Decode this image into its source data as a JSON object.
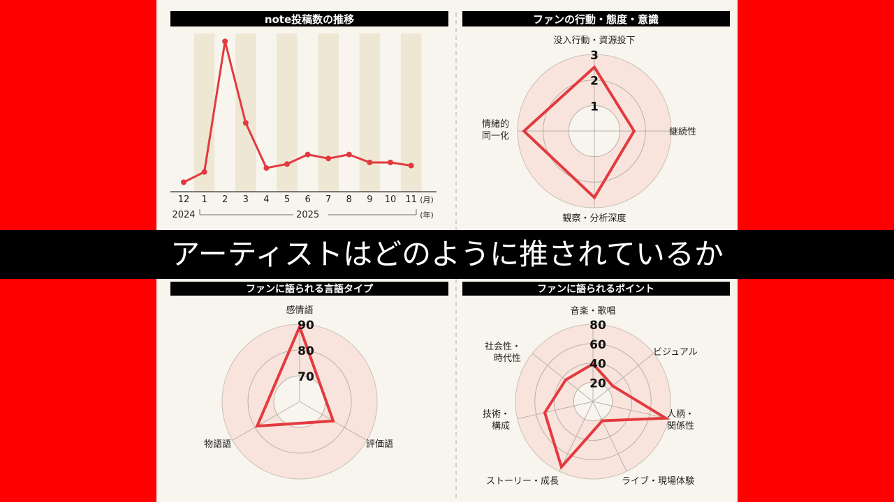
{
  "banner": {
    "title": "アーティストはどのように推されているか"
  },
  "colors": {
    "accent": "#e23a3f",
    "background": "#ff0000",
    "panel": "#f8f5ee",
    "ring": "#f8e4dc",
    "band": "#ede7d4",
    "header": "#000000"
  },
  "chart_data": [
    {
      "type": "line",
      "title": "note投稿数の推移",
      "categories": [
        "12",
        "1",
        "2",
        "3",
        "4",
        "5",
        "6",
        "7",
        "8",
        "9",
        "10",
        "11"
      ],
      "x_unit": "(月)",
      "years": [
        "2024",
        "2025"
      ],
      "year_unit": "(年)",
      "series": [
        {
          "values": [
            12,
            25,
            190,
            87,
            30,
            35,
            47,
            42,
            47,
            37,
            37,
            33
          ]
        }
      ],
      "ylim": [
        0,
        200
      ],
      "grid": "alternating vertical bands",
      "y_axis_labels": "none"
    },
    {
      "type": "radar",
      "title": "ファンの行動・態度・意識",
      "axes": [
        "没入行動・資源投下",
        "継続性",
        "観察・分析深度",
        "情緒的同一化"
      ],
      "ticks": [
        "1",
        "2",
        "3"
      ],
      "range": [
        0,
        3
      ],
      "values": [
        2.5,
        1.55,
        2.6,
        2.75
      ]
    },
    {
      "type": "radar",
      "title": "ファンに語られる言語タイプ",
      "axes": [
        "感情語",
        "評価語",
        "物語語"
      ],
      "ticks": [
        "70",
        "80",
        "90"
      ],
      "range": [
        60,
        90
      ],
      "values": [
        89,
        75,
        79
      ]
    },
    {
      "type": "radar",
      "title": "ファンに語られるポイント",
      "axes": [
        "音楽・歌唱",
        "ビジュアル",
        "人柄・関係性",
        "ライブ・現場体験",
        "ストーリー・成長",
        "技術・構成",
        "社会性・時代性"
      ],
      "ticks": [
        "20",
        "40",
        "60",
        "80"
      ],
      "range": [
        0,
        80
      ],
      "values": [
        39,
        26,
        77,
        22,
        75,
        51,
        36
      ]
    }
  ]
}
